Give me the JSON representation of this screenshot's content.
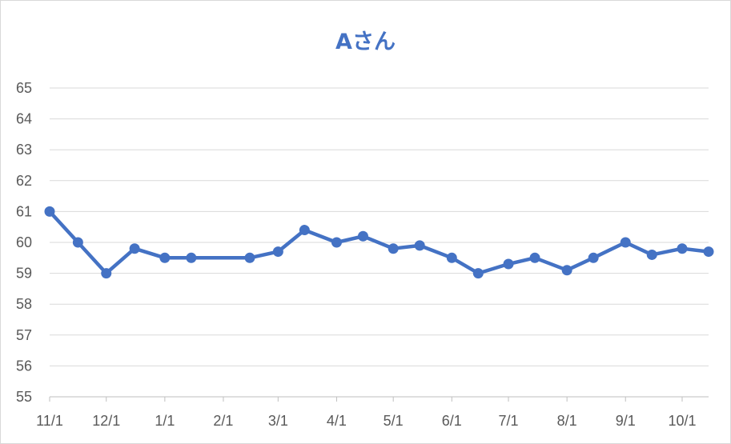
{
  "chart_data": {
    "type": "line",
    "title": "Aさん",
    "xlabel": "",
    "ylabel": "",
    "ylim": [
      55,
      65
    ],
    "yticks": [
      55,
      56,
      57,
      58,
      59,
      60,
      61,
      62,
      63,
      64,
      65
    ],
    "x_tick_labels": [
      "11/1",
      "12/1",
      "1/1",
      "2/1",
      "3/1",
      "4/1",
      "5/1",
      "6/1",
      "7/1",
      "8/1",
      "9/1",
      "10/1"
    ],
    "grid": true,
    "legend": "none",
    "color": "#4472c4",
    "series": [
      {
        "x": [
          "11/1",
          "11/16",
          "12/1",
          "12/16",
          "1/1",
          "1/15",
          "2/15",
          "3/1",
          "3/15",
          "4/1",
          "4/15",
          "5/1",
          "5/15",
          "6/1",
          "6/15",
          "7/1",
          "7/15",
          "8/1",
          "8/15",
          "9/1",
          "9/15",
          "10/1",
          "10/15"
        ],
        "values": [
          61.0,
          60.0,
          59.0,
          59.8,
          59.5,
          59.5,
          59.5,
          59.7,
          60.4,
          60.0,
          60.2,
          59.8,
          59.9,
          59.5,
          59.0,
          59.3,
          59.5,
          59.1,
          59.5,
          60.0,
          59.6,
          59.8,
          59.7
        ]
      }
    ]
  }
}
